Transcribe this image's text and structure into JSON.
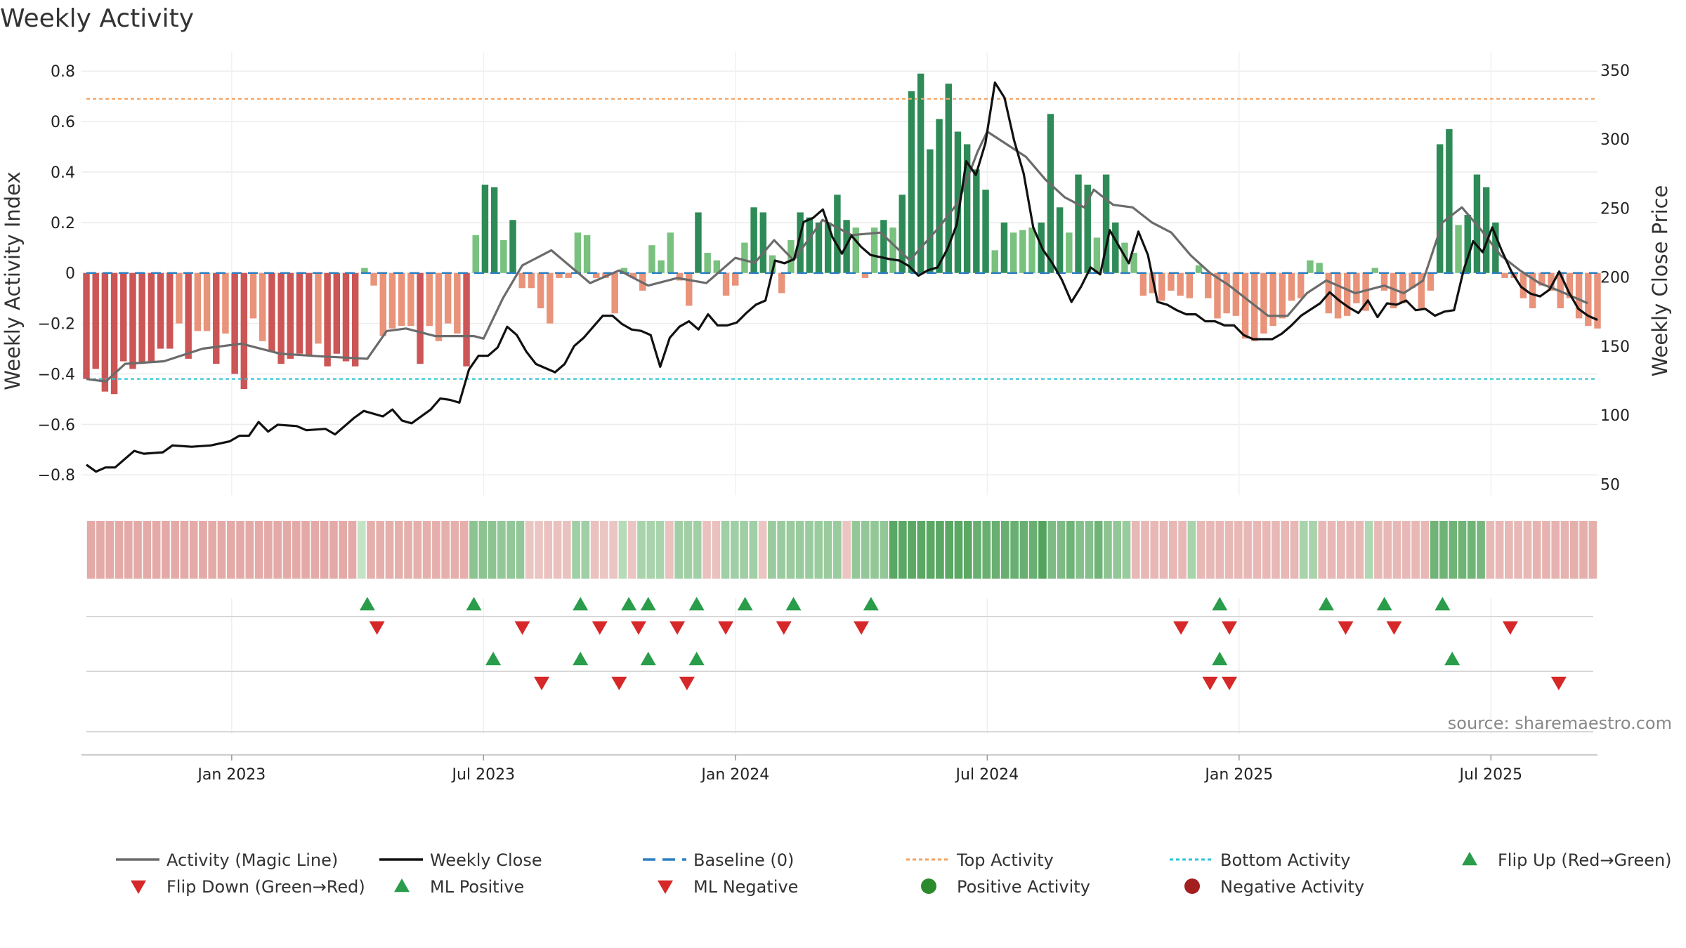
{
  "chart_data": {
    "type": "bar",
    "title": "Weekly Activity",
    "ylabel_left": "Weekly Activity Index",
    "ylabel_right": "Weekly Close Price",
    "ylim_left": [
      -0.88,
      0.82
    ],
    "ylim_right": [
      42,
      353
    ],
    "yticks_left": [
      0.8,
      0.6,
      0.4,
      0.2,
      0,
      -0.2,
      -0.4,
      -0.6,
      -0.8
    ],
    "ytick_labels_left": [
      "0.8",
      "0.6",
      "0.4",
      "0.2",
      "0",
      "−0.2",
      "−0.4",
      "−0.6",
      "−0.8"
    ],
    "yticks_right": [
      350,
      300,
      250,
      200,
      150,
      100,
      50
    ],
    "top_activity": 0.69,
    "bottom_activity": -0.42,
    "x_start_week": 0,
    "x_end_week": 156,
    "xticks": [
      {
        "week": 15,
        "label": "Jan 2023"
      },
      {
        "week": 41,
        "label": "Jul 2023"
      },
      {
        "week": 67,
        "label": "Jan 2024"
      },
      {
        "week": 93,
        "label": "Jul 2024"
      },
      {
        "week": 119,
        "label": "Jan 2025"
      },
      {
        "week": 145,
        "label": "Jul 2025"
      }
    ],
    "activity": [
      -0.42,
      -0.38,
      -0.47,
      -0.48,
      -0.35,
      -0.38,
      -0.36,
      -0.35,
      -0.3,
      -0.3,
      -0.2,
      -0.34,
      -0.23,
      -0.23,
      -0.36,
      -0.24,
      -0.4,
      -0.46,
      -0.18,
      -0.27,
      -0.31,
      -0.36,
      -0.34,
      -0.32,
      -0.33,
      -0.28,
      -0.37,
      -0.32,
      -0.35,
      -0.37,
      0.02,
      -0.05,
      -0.25,
      -0.22,
      -0.21,
      -0.21,
      -0.36,
      -0.21,
      -0.27,
      -0.2,
      -0.24,
      -0.37,
      0.15,
      0.35,
      0.34,
      0.13,
      0.21,
      -0.06,
      -0.06,
      -0.14,
      -0.2,
      -0.02,
      -0.02,
      0.16,
      0.15,
      -0.02,
      -0.02,
      -0.16,
      0.02,
      -0.02,
      -0.07,
      0.11,
      0.05,
      0.16,
      -0.03,
      -0.13,
      0.24,
      0.08,
      0.05,
      -0.09,
      -0.05,
      0.12,
      0.26,
      0.24,
      0.07,
      -0.08,
      0.13,
      0.24,
      0.22,
      0.2,
      0.2,
      0.31,
      0.21,
      0.18,
      -0.02,
      0.18,
      0.21,
      0.18,
      0.31,
      0.72,
      0.79,
      0.49,
      0.61,
      0.75,
      0.56,
      0.51,
      0.41,
      0.33,
      0.09,
      0.2,
      0.16,
      0.17,
      0.18,
      0.2,
      0.63,
      0.26,
      0.16,
      0.39,
      0.35,
      0.14,
      0.39,
      0.2,
      0.12,
      0.08,
      -0.09,
      -0.08,
      -0.11,
      -0.07,
      -0.09,
      -0.1,
      0.03,
      -0.1,
      -0.18,
      -0.16,
      -0.17,
      -0.26,
      -0.27,
      -0.24,
      -0.21,
      -0.18,
      -0.11,
      -0.1,
      0.05,
      0.04,
      -0.16,
      -0.18,
      -0.17,
      -0.12,
      -0.15,
      0.02,
      -0.07,
      -0.14,
      -0.12,
      -0.06,
      -0.14,
      -0.07,
      0.51,
      0.57,
      0.19,
      0.23,
      0.39,
      0.34,
      0.2,
      -0.02,
      -0.02,
      -0.1,
      -0.14,
      -0.05,
      -0.07,
      -0.14,
      -0.1,
      -0.18,
      -0.21,
      -0.22
    ],
    "magic_line_keys": [
      [
        0,
        -0.42
      ],
      [
        2,
        -0.43
      ],
      [
        4,
        -0.36
      ],
      [
        8,
        -0.35
      ],
      [
        12,
        -0.3
      ],
      [
        16,
        -0.28
      ],
      [
        20,
        -0.32
      ],
      [
        24,
        -0.33
      ],
      [
        29,
        -0.34
      ],
      [
        31,
        -0.23
      ],
      [
        33,
        -0.22
      ],
      [
        36,
        -0.25
      ],
      [
        40,
        -0.25
      ],
      [
        41,
        -0.26
      ],
      [
        43,
        -0.1
      ],
      [
        45,
        0.03
      ],
      [
        48,
        0.09
      ],
      [
        52,
        -0.04
      ],
      [
        55,
        0.01
      ],
      [
        58,
        -0.05
      ],
      [
        61,
        -0.02
      ],
      [
        64,
        -0.04
      ],
      [
        67,
        0.06
      ],
      [
        69,
        0.04
      ],
      [
        71,
        0.13
      ],
      [
        73,
        0.05
      ],
      [
        76,
        0.21
      ],
      [
        79,
        0.15
      ],
      [
        82,
        0.16
      ],
      [
        85,
        0.05
      ],
      [
        88,
        0.18
      ],
      [
        90,
        0.28
      ],
      [
        92,
        0.48
      ],
      [
        93,
        0.56
      ],
      [
        95,
        0.51
      ],
      [
        97,
        0.46
      ],
      [
        99,
        0.37
      ],
      [
        101,
        0.3
      ],
      [
        103,
        0.26
      ],
      [
        104,
        0.33
      ],
      [
        106,
        0.27
      ],
      [
        108,
        0.26
      ],
      [
        110,
        0.2
      ],
      [
        112,
        0.16
      ],
      [
        114,
        0.07
      ],
      [
        116,
        0.0
      ],
      [
        118,
        -0.05
      ],
      [
        120,
        -0.11
      ],
      [
        122,
        -0.17
      ],
      [
        124,
        -0.17
      ],
      [
        126,
        -0.08
      ],
      [
        128,
        -0.03
      ],
      [
        131,
        -0.08
      ],
      [
        134,
        -0.05
      ],
      [
        136,
        -0.08
      ],
      [
        138,
        -0.03
      ],
      [
        140,
        0.2
      ],
      [
        142,
        0.26
      ],
      [
        144,
        0.17
      ],
      [
        146,
        0.07
      ],
      [
        148,
        0.01
      ],
      [
        150,
        -0.04
      ],
      [
        152,
        -0.07
      ],
      [
        155,
        -0.12
      ]
    ],
    "close_keys": [
      [
        0,
        64
      ],
      [
        1,
        59
      ],
      [
        2,
        62
      ],
      [
        3,
        62
      ],
      [
        5,
        74
      ],
      [
        6,
        72
      ],
      [
        8,
        73
      ],
      [
        9,
        78
      ],
      [
        11,
        77
      ],
      [
        13,
        78
      ],
      [
        15,
        81
      ],
      [
        16,
        85
      ],
      [
        17,
        85
      ],
      [
        18,
        95
      ],
      [
        19,
        88
      ],
      [
        20,
        93
      ],
      [
        22,
        92
      ],
      [
        23,
        89
      ],
      [
        25,
        90
      ],
      [
        26,
        86
      ],
      [
        28,
        98
      ],
      [
        29,
        103
      ],
      [
        31,
        99
      ],
      [
        32,
        104
      ],
      [
        33,
        96
      ],
      [
        34,
        94
      ],
      [
        36,
        104
      ],
      [
        37,
        112
      ],
      [
        38,
        111
      ],
      [
        39,
        109
      ],
      [
        40,
        133
      ],
      [
        41,
        143
      ],
      [
        42,
        143
      ],
      [
        43,
        149
      ],
      [
        44,
        164
      ],
      [
        45,
        158
      ],
      [
        46,
        146
      ],
      [
        47,
        137
      ],
      [
        49,
        131
      ],
      [
        50,
        137
      ],
      [
        51,
        150
      ],
      [
        52,
        156
      ],
      [
        53,
        164
      ],
      [
        54,
        172
      ],
      [
        55,
        172
      ],
      [
        56,
        166
      ],
      [
        57,
        162
      ],
      [
        58,
        161
      ],
      [
        59,
        158
      ],
      [
        60,
        135
      ],
      [
        61,
        156
      ],
      [
        62,
        164
      ],
      [
        63,
        168
      ],
      [
        64,
        162
      ],
      [
        65,
        173
      ],
      [
        66,
        165
      ],
      [
        67,
        165
      ],
      [
        68,
        167
      ],
      [
        69,
        174
      ],
      [
        70,
        180
      ],
      [
        71,
        183
      ],
      [
        72,
        212
      ],
      [
        73,
        210
      ],
      [
        74,
        213
      ],
      [
        75,
        240
      ],
      [
        76,
        243
      ],
      [
        77,
        249
      ],
      [
        78,
        229
      ],
      [
        79,
        217
      ],
      [
        80,
        230
      ],
      [
        81,
        222
      ],
      [
        82,
        216
      ],
      [
        84,
        213
      ],
      [
        85,
        212
      ],
      [
        86,
        208
      ],
      [
        87,
        201
      ],
      [
        88,
        205
      ],
      [
        89,
        207
      ],
      [
        90,
        220
      ],
      [
        91,
        238
      ],
      [
        92,
        284
      ],
      [
        93,
        274
      ],
      [
        94,
        297
      ],
      [
        95,
        341
      ],
      [
        96,
        330
      ],
      [
        97,
        299
      ],
      [
        98,
        275
      ],
      [
        99,
        236
      ],
      [
        100,
        220
      ],
      [
        101,
        210
      ],
      [
        102,
        198
      ],
      [
        103,
        182
      ],
      [
        104,
        193
      ],
      [
        105,
        207
      ],
      [
        106,
        202
      ],
      [
        107,
        234
      ],
      [
        108,
        222
      ],
      [
        109,
        210
      ],
      [
        110,
        233
      ],
      [
        111,
        216
      ],
      [
        112,
        182
      ],
      [
        113,
        180
      ],
      [
        114,
        176
      ],
      [
        115,
        173
      ],
      [
        116,
        173
      ],
      [
        117,
        168
      ],
      [
        118,
        168
      ],
      [
        119,
        165
      ],
      [
        120,
        165
      ],
      [
        121,
        158
      ],
      [
        122,
        155
      ],
      [
        123,
        155
      ],
      [
        124,
        155
      ],
      [
        125,
        159
      ],
      [
        126,
        165
      ],
      [
        127,
        172
      ],
      [
        129,
        181
      ],
      [
        130,
        189
      ],
      [
        131,
        183
      ],
      [
        132,
        178
      ],
      [
        133,
        174
      ],
      [
        134,
        183
      ],
      [
        135,
        171
      ],
      [
        136,
        181
      ],
      [
        137,
        180
      ],
      [
        138,
        183
      ],
      [
        139,
        176
      ],
      [
        140,
        177
      ],
      [
        141,
        172
      ],
      [
        142,
        175
      ],
      [
        143,
        176
      ],
      [
        144,
        205
      ],
      [
        145,
        226
      ],
      [
        146,
        218
      ],
      [
        147,
        236
      ],
      [
        148,
        219
      ],
      [
        149,
        204
      ],
      [
        150,
        193
      ],
      [
        151,
        188
      ],
      [
        152,
        186
      ],
      [
        153,
        191
      ],
      [
        154,
        204
      ],
      [
        155,
        189
      ],
      [
        156,
        177
      ],
      [
        157,
        172
      ],
      [
        158,
        169
      ]
    ],
    "heat_strip": [
      -0.5,
      -0.5,
      -0.5,
      -0.5,
      -0.5,
      -0.5,
      -0.5,
      -0.5,
      -0.5,
      -0.5,
      -0.5,
      -0.5,
      -0.5,
      -0.5,
      -0.5,
      -0.5,
      -0.5,
      -0.5,
      -0.5,
      -0.5,
      -0.5,
      -0.5,
      -0.5,
      -0.5,
      -0.5,
      -0.5,
      -0.5,
      -0.5,
      -0.5,
      0.1,
      -0.45,
      -0.45,
      -0.45,
      -0.45,
      -0.45,
      -0.45,
      -0.45,
      -0.45,
      -0.45,
      -0.45,
      -0.45,
      0.5,
      0.5,
      0.5,
      0.45,
      0.45,
      0.45,
      -0.2,
      -0.2,
      -0.25,
      -0.25,
      -0.25,
      0.35,
      0.35,
      -0.25,
      -0.2,
      -0.2,
      0.2,
      -0.2,
      0.3,
      0.3,
      0.3,
      -0.25,
      0.35,
      0.35,
      0.35,
      -0.25,
      -0.25,
      0.35,
      0.35,
      0.35,
      0.35,
      -0.2,
      0.4,
      0.4,
      0.4,
      0.4,
      0.4,
      0.4,
      0.4,
      0.4,
      -0.2,
      0.45,
      0.45,
      0.45,
      0.45,
      0.85,
      0.85,
      0.85,
      0.85,
      0.85,
      0.85,
      0.85,
      0.85,
      0.85,
      0.75,
      0.75,
      0.75,
      0.75,
      0.75,
      0.75,
      0.75,
      0.9,
      0.6,
      0.6,
      0.7,
      0.55,
      0.55,
      0.7,
      0.5,
      0.45,
      0.4,
      -0.35,
      -0.35,
      -0.35,
      -0.35,
      -0.35,
      -0.35,
      0.3,
      -0.35,
      -0.35,
      -0.35,
      -0.35,
      -0.35,
      -0.35,
      -0.35,
      -0.35,
      -0.35,
      -0.35,
      -0.35,
      0.3,
      0.3,
      -0.35,
      -0.35,
      -0.35,
      -0.35,
      -0.35,
      0.25,
      -0.35,
      -0.35,
      -0.35,
      -0.35,
      -0.35,
      -0.35,
      0.7,
      0.7,
      0.7,
      0.7,
      0.7,
      0.65,
      -0.35,
      -0.35,
      -0.35,
      -0.35,
      -0.35,
      -0.4,
      -0.4,
      -0.4,
      -0.4,
      -0.45,
      -0.45,
      -0.45
    ],
    "flip_up_weeks": [
      29,
      40,
      51,
      56,
      58,
      63,
      68,
      73,
      81,
      117,
      128,
      134,
      140
    ],
    "flip_down_weeks": [
      30,
      45,
      53,
      57,
      61,
      66,
      72,
      80,
      113,
      118,
      130,
      135,
      147
    ],
    "ml_positive_weeks": [
      42,
      51,
      58,
      63,
      117,
      141
    ],
    "ml_negative_weeks": [
      47,
      55,
      62,
      116,
      118,
      152
    ],
    "legend": [
      {
        "label": "Activity (Magic Line)",
        "kind": "line",
        "color": "#6b6b6b"
      },
      {
        "label": "Weekly Close",
        "kind": "line",
        "color": "#111111"
      },
      {
        "label": "Baseline (0)",
        "kind": "dash",
        "color": "#2d7fc1"
      },
      {
        "label": "Top Activity",
        "kind": "dot",
        "color": "#f4a261"
      },
      {
        "label": "Bottom Activity",
        "kind": "dot",
        "color": "#2ec4d3"
      },
      {
        "label": "Flip Up (Red→Green)",
        "kind": "up",
        "color": "#2a9d4b"
      },
      {
        "label": "Flip Down (Green→Red)",
        "kind": "down",
        "color": "#d62828"
      },
      {
        "label": "ML Positive",
        "kind": "up",
        "color": "#2a9d4b"
      },
      {
        "label": "ML Negative",
        "kind": "down",
        "color": "#d62828"
      },
      {
        "label": "Positive Activity",
        "kind": "circle",
        "color": "#2b8a2b"
      },
      {
        "label": "Negative Activity",
        "kind": "circle",
        "color": "#a31f1f"
      }
    ],
    "source": "source: sharemaestro.com"
  }
}
